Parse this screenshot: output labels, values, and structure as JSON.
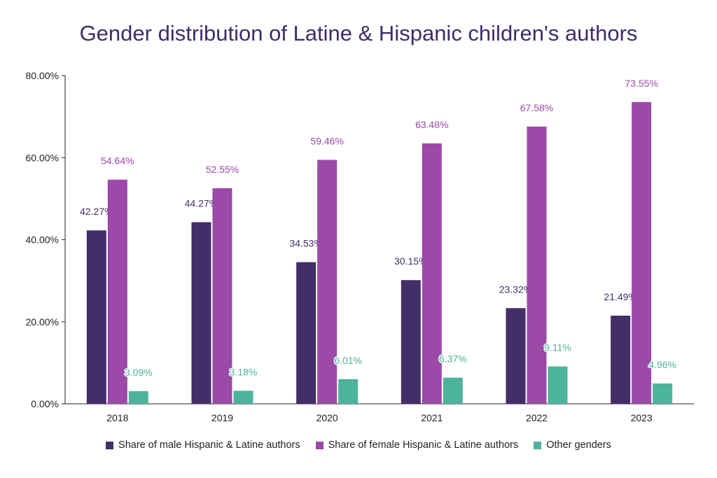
{
  "chart_data": {
    "type": "bar",
    "title": "Gender distribution of Latine & Hispanic children's authors",
    "categories": [
      "2018",
      "2019",
      "2020",
      "2021",
      "2022",
      "2023"
    ],
    "series": [
      {
        "name": "Share of male Hispanic & Latine authors",
        "color": "#432e68",
        "values": [
          42.27,
          44.27,
          34.53,
          30.15,
          23.32,
          21.49
        ],
        "labels": [
          "42.27%",
          "44.27%",
          "34.53%",
          "30.15%",
          "23.32%",
          "21.49%"
        ]
      },
      {
        "name": "Share of female Hispanic & Latine authors",
        "color": "#9b4aa8",
        "values": [
          54.64,
          52.55,
          59.46,
          63.48,
          67.58,
          73.55
        ],
        "labels": [
          "54.64%",
          "52.55%",
          "59.46%",
          "63.48%",
          "67.58%",
          "73.55%"
        ]
      },
      {
        "name": "Other genders",
        "color": "#4db39a",
        "values": [
          3.09,
          3.18,
          6.01,
          6.37,
          9.11,
          4.96
        ],
        "labels": [
          "3.09%",
          "3.18%",
          "6.01%",
          "6.37%",
          "9.11%",
          "4.96%"
        ]
      }
    ],
    "ylim": [
      0,
      80
    ],
    "yticks": [
      0,
      20,
      40,
      60,
      80
    ],
    "ytick_labels": [
      "0.00%",
      "20.00%",
      "40.00%",
      "60.00%",
      "80.00%"
    ],
    "grid": false,
    "legend_position": "bottom"
  }
}
